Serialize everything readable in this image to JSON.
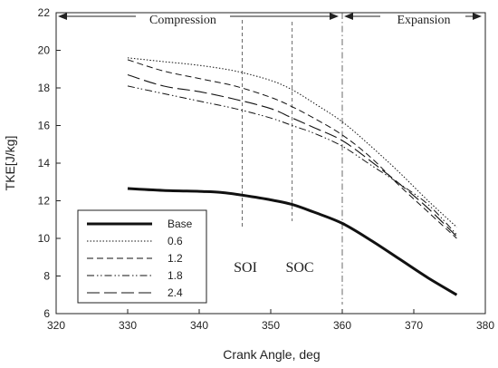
{
  "chart_data": {
    "type": "line",
    "xlabel": "Crank Angle, deg",
    "ylabel": "TKE[J/kg]",
    "xlim": [
      320,
      380
    ],
    "ylim": [
      6,
      22
    ],
    "xticks": [
      320,
      330,
      340,
      350,
      360,
      370,
      380
    ],
    "yticks": [
      6,
      8,
      10,
      12,
      14,
      16,
      18,
      20,
      22
    ],
    "legend_position": "bottom-left",
    "grid": false,
    "series": [
      {
        "name": "Base",
        "style": "thick-solid",
        "x": [
          330,
          335,
          340,
          343,
          346,
          350,
          353,
          356,
          360,
          364,
          368,
          372,
          376
        ],
        "y": [
          12.65,
          12.55,
          12.5,
          12.45,
          12.3,
          12.05,
          11.8,
          11.4,
          10.8,
          9.9,
          8.9,
          7.9,
          7.0
        ]
      },
      {
        "name": "0.6",
        "style": "dotted",
        "x": [
          330,
          335,
          340,
          345,
          350,
          353,
          356,
          360,
          364,
          368,
          372,
          376
        ],
        "y": [
          19.6,
          19.4,
          19.2,
          18.9,
          18.4,
          17.9,
          17.2,
          16.2,
          14.9,
          13.5,
          12.0,
          10.6
        ]
      },
      {
        "name": "1.2",
        "style": "dashed",
        "x": [
          330,
          335,
          340,
          345,
          350,
          353,
          356,
          360,
          364,
          368,
          372,
          376
        ],
        "y": [
          19.5,
          18.9,
          18.5,
          18.1,
          17.5,
          17.0,
          16.4,
          15.5,
          14.3,
          12.8,
          11.4,
          10.0
        ]
      },
      {
        "name": "1.8",
        "style": "dash-dot-dot",
        "x": [
          330,
          335,
          340,
          345,
          350,
          353,
          356,
          360,
          364,
          368,
          372,
          376
        ],
        "y": [
          18.1,
          17.7,
          17.3,
          16.9,
          16.4,
          16.0,
          15.6,
          14.9,
          13.9,
          12.9,
          11.8,
          10.2
        ]
      },
      {
        "name": "2.4",
        "style": "long-dash",
        "x": [
          330,
          335,
          340,
          345,
          350,
          353,
          356,
          360,
          364,
          368,
          372,
          376
        ],
        "y": [
          18.7,
          18.1,
          17.8,
          17.4,
          16.9,
          16.4,
          15.9,
          15.2,
          14.1,
          12.9,
          11.6,
          10.1
        ]
      }
    ],
    "annotations": {
      "compression_label": "Compression",
      "expansion_label": "Expansion",
      "soi_label": "SOI",
      "soc_label": "SOC",
      "soi_x": 346,
      "soc_x": 353,
      "tdc_x": 360
    }
  }
}
